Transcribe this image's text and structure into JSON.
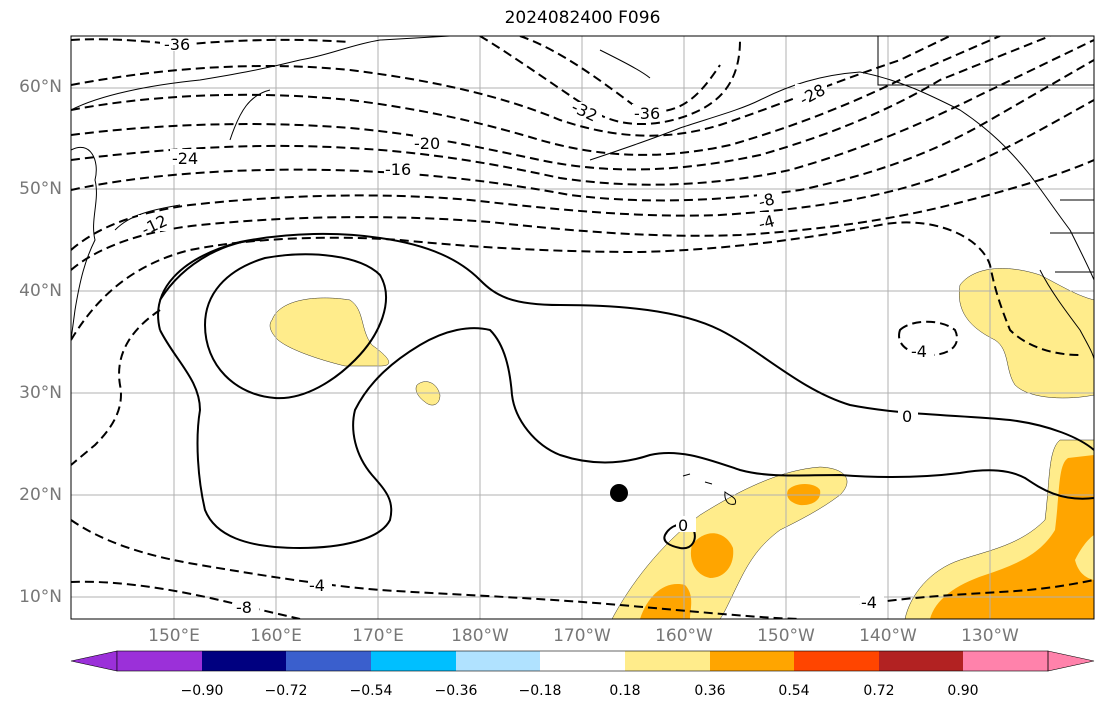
{
  "title": "2024082400 F096",
  "latitude_labels": [
    "60°N",
    "50°N",
    "40°N",
    "30°N",
    "20°N",
    "10°N"
  ],
  "longitude_labels": [
    "150°E",
    "160°E",
    "170°E",
    "180°W",
    "170°W",
    "160°W",
    "150°W",
    "140°W",
    "130°W"
  ],
  "colorbar": {
    "tick_labels": [
      "−0.90",
      "−0.72",
      "−0.54",
      "−0.36",
      "−0.18",
      "0.18",
      "0.36",
      "0.54",
      "0.72",
      "0.90"
    ],
    "colors": [
      "#9b30d9",
      "#000080",
      "#3a5fcd",
      "#00bfff",
      "#b0e2ff",
      "#ffffff",
      "#ffec8b",
      "#ffa500",
      "#ff4500",
      "#b22222",
      "#ff82ab"
    ]
  },
  "contour_labels": [
    "-36",
    "-32",
    "-36",
    "-28",
    "-24",
    "-20",
    "-16",
    "-12",
    "-8",
    "-4",
    "-4",
    "0",
    "0",
    "-4",
    "-8",
    "-4"
  ],
  "marker": "storm-position-dot"
}
